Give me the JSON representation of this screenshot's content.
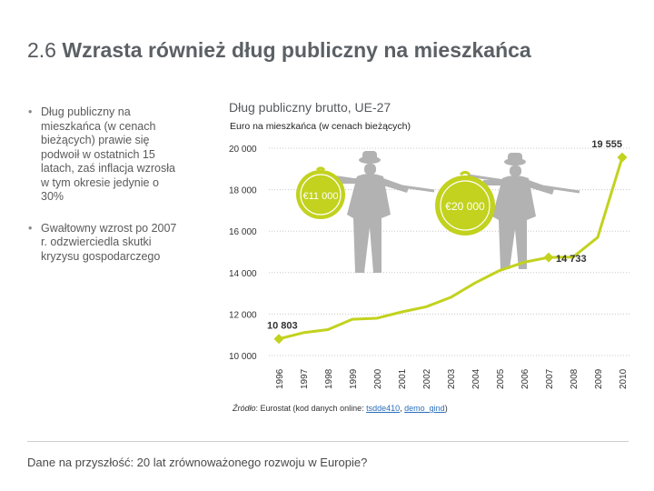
{
  "slide": {
    "number": "2.6",
    "title": "Wzrasta również dług publiczny na mieszkańca",
    "bullets": [
      "Dług publiczny na mieszkańca (w cenach bieżących) prawie się podwoił w ostatnich 15 latach, zaś inflacja wzrosła w tym okresie jedynie o 30%",
      "Gwałtowny wzrost po 2007 r. odzwierciedla skutki kryzysu gospodarczego"
    ],
    "source_label": "Źródło",
    "source_text": ": Eurostat (kod danych online: ",
    "source_link1": "tsdde410",
    "source_sep": ", ",
    "source_link2": "demo_gind",
    "source_end": ")",
    "footer": "Dane na przyszłość: 20 lat zrównoważonego rozwoju w Europie?"
  },
  "chart_data": {
    "type": "line",
    "title": "Dług publiczny brutto, UE-27",
    "subtitle": "Euro na mieszkańca (w cenach bieżących)",
    "categories": [
      "1996",
      "1997",
      "1998",
      "1999",
      "2000",
      "2001",
      "2002",
      "2003",
      "2004",
      "2005",
      "2006",
      "2007",
      "2008",
      "2009",
      "2010"
    ],
    "values": [
      10803,
      11100,
      11250,
      11750,
      11800,
      12100,
      12350,
      12800,
      13500,
      14100,
      14500,
      14733,
      14750,
      15700,
      19555
    ],
    "ylim": [
      10000,
      20000
    ],
    "yticks": [
      10000,
      12000,
      14000,
      16000,
      18000,
      20000
    ],
    "ytick_labels": [
      "10 000",
      "12 000",
      "14 000",
      "16 000",
      "18 000",
      "20 000"
    ],
    "data_labels": [
      {
        "index": 0,
        "text": "10 803"
      },
      {
        "index": 11,
        "text": "14 733"
      },
      {
        "index": 14,
        "text": "19 555"
      }
    ],
    "annotations": [
      {
        "text": "€11 000"
      },
      {
        "text": "€20 000"
      }
    ],
    "colors": {
      "line": "#c2d21e",
      "marker": "#c2d21e",
      "grid": "#c8c8c8",
      "figure": "#b2b2b2"
    }
  }
}
